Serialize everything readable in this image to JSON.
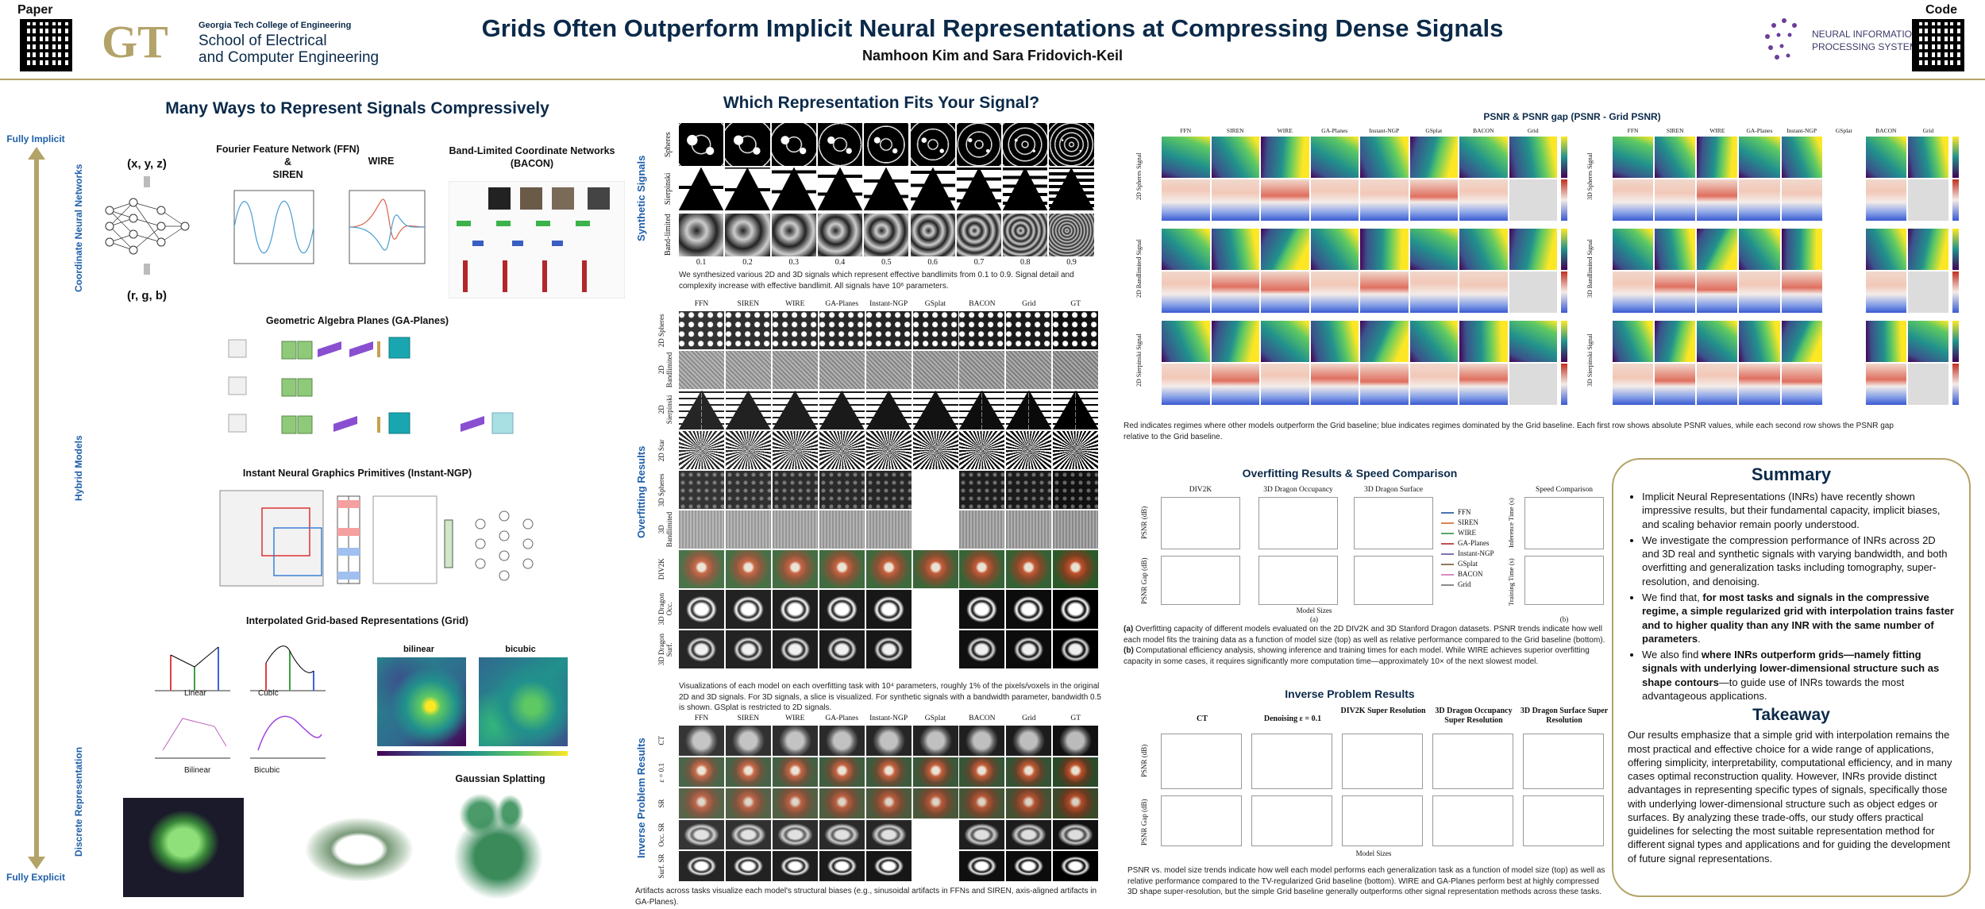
{
  "header": {
    "title": "Grids Often Outperform Implicit Neural Representations at Compressing Dense Signals",
    "authors": "Namhoon Kim and Sara Fridovich-Keil",
    "paper_label": "Paper",
    "code_label": "Code",
    "institution": [
      "Georgia Tech College of Engineering",
      "School of Electrical",
      "and Computer Engineering"
    ],
    "conference": [
      "NEURAL INFORMATION",
      "PROCESSING SYSTEMS"
    ]
  },
  "left": {
    "title": "Many Ways to Represent Signals Compressively",
    "top_label": "Fully Implicit",
    "bottom_label": "Fully Explicit",
    "groups": [
      "Coordinate Neural Networks",
      "Hybrid Models",
      "Discrete Representation"
    ],
    "input": "(x, y, z)",
    "output": "(r, g, b)",
    "ffn_title": [
      "Fourier Feature Network (FFN)",
      "&",
      "SIREN"
    ],
    "wire_title": "WIRE",
    "bacon_title": [
      "Band-Limited Coordinate Networks",
      "(BACON)"
    ],
    "gaplanes_title": "Geometric Algebra Planes (GA-Planes)",
    "ingp_title": "Instant Neural Graphics Primitives (Instant-NGP)",
    "grid_title": "Interpolated Grid-based Representations (Grid)",
    "interp_labels": [
      "Linear",
      "Cubic",
      "Bilinear",
      "Bicubic"
    ],
    "heatmap_titles": [
      "bilinear",
      "bicubic"
    ],
    "gs_title": "Gaussian Splatting"
  },
  "middle": {
    "title": "Which Representation Fits Your Signal?",
    "synthetic": {
      "label": "Synthetic Signals",
      "rows": [
        "Spheres",
        "Sierpinski",
        "Band-limited"
      ],
      "bandwidths": [
        "0.1",
        "0.2",
        "0.3",
        "0.4",
        "0.5",
        "0.6",
        "0.7",
        "0.8",
        "0.9"
      ],
      "caption": "We synthesized various 2D and 3D signals which represent effective bandlimits from 0.1 to 0.9. Signal detail and complexity increase with effective bandlimit. All signals have 10⁶ parameters."
    },
    "overfitting": {
      "label": "Overfitting Results",
      "columns": [
        "FFN",
        "SIREN",
        "WIRE",
        "GA-Planes",
        "Instant-NGP",
        "GSplat",
        "BACON",
        "Grid",
        "GT"
      ],
      "rows": [
        "2D Spheres",
        "2D Bandlimited",
        "2D Sierpinski",
        "2D Star",
        "3D Spheres",
        "3D Bandlimited",
        "DIV2K",
        "3D Dragon Occ.",
        "3D Dragon Surf."
      ],
      "caption": "Visualizations of each model on each overfitting task with 10⁴ parameters, roughly 1% of the pixels/voxels in the original 2D and 3D signals. For 3D signals, a slice is visualized. For synthetic signals with a bandwidth parameter, bandwidth 0.5 is shown. GSplat is restricted to 2D signals."
    },
    "inverse": {
      "label": "Inverse Problem Results",
      "columns": [
        "FFN",
        "SIREN",
        "WIRE",
        "GA-Planes",
        "Instant-NGP",
        "GSplat",
        "BACON",
        "Grid",
        "GT"
      ],
      "rows": [
        "CT",
        "ε = 0.1",
        "SR",
        "Occ. SR",
        "Surf. SR"
      ],
      "caption": "Artifacts across tasks visualize each model's structural biases (e.g., sinusoidal artifacts in FFNs and SIREN, axis-aligned artifacts in GA-Planes)."
    }
  },
  "right": {
    "psnr": {
      "title": "PSNR & PSNR gap (PSNR - Grid PSNR)",
      "columns": [
        "FFN",
        "SIREN",
        "WIRE",
        "GA-Planes",
        "Instant-NGP",
        "GSplat",
        "BACON",
        "Grid"
      ],
      "left_rows": [
        "2D Spheres Signal",
        "2D Bandlimited Signal",
        "2D Sierpinski Signal"
      ],
      "right_rows": [
        "3D Spheres Signal",
        "3D Bandlimited Signal",
        "3D Sierpinski Signal"
      ],
      "caption": "Red indicates regimes where other models outperform the Grid baseline; blue indicates regimes dominated by the Grid baseline. Each first row shows absolute PSNR values, while each second row shows the PSNR gap relative to the Grid baseline."
    },
    "overfit": {
      "title": "Overfitting Results & Speed Comparison",
      "panels": [
        "DIV2K",
        "3D Dragon Occupancy",
        "3D Dragon Surface",
        "Speed Comparison"
      ],
      "y_labels": [
        "PSNR (dB)",
        "PSNR Gap (dB)"
      ],
      "speed_y_labels": [
        "Inference Time (s)",
        "Training Time (s)"
      ],
      "x_label": "Model Sizes",
      "sublabels": [
        "(a)",
        "(b)"
      ],
      "legend": [
        {
          "name": "FFN",
          "color": "#4c72b0"
        },
        {
          "name": "SIREN",
          "color": "#dd8452"
        },
        {
          "name": "WIRE",
          "color": "#55a868"
        },
        {
          "name": "GA-Planes",
          "color": "#c44e52"
        },
        {
          "name": "Instant-NGP",
          "color": "#8172b3"
        },
        {
          "name": "GSplat",
          "color": "#937860"
        },
        {
          "name": "BACON",
          "color": "#da8bc3"
        },
        {
          "name": "Grid",
          "color": "#8c8c8c"
        }
      ],
      "caption": [
        "(a)",
        " Overfitting capacity of different models evaluated on the 2D DIV2K and 3D Stanford Dragon datasets. PSNR trends indicate how well each model fits the training data as a function of model size (top) as well as relative performance compared to the Grid baseline (bottom). ",
        "(b)",
        " Computational efficiency analysis, showing inference and training times for each model. While WIRE achieves superior overfitting capacity in some cases, it requires significantly more computation time—approximately 10× of the next slowest model."
      ]
    },
    "inverse": {
      "title": "Inverse Problem Results",
      "tasks": [
        "CT",
        "Denoising ε = 0.1",
        "DIV2K Super Resolution",
        "3D Dragon Occupancy Super Resolution",
        "3D Dragon Surface Super Resolution"
      ],
      "y_labels": [
        "PSNR (dB)",
        "PSNR Gap (dB)"
      ],
      "x_label": "Model Sizes",
      "caption": "PSNR vs. model size trends indicate how well each model performs each generalization task as a function of model size (top) as well as relative performance compared to the TV-regularized Grid baseline (bottom). WIRE and GA-Planes perform best at highly compressed 3D shape super-resolution, but the simple Grid baseline generally outperforms other signal representation methods across these tasks."
    },
    "summary": {
      "title": "Summary",
      "bullets": [
        [
          "Implicit Neural Representations (INRs) have recently shown impressive results, but their fundamental capacity, implicit biases, and scaling behavior remain poorly understood."
        ],
        [
          "We investigate the compression performance of INRs across 2D and 3D real and synthetic signals with varying bandwidth, and both overfitting and generalization tasks including tomography, super-resolution, and denoising."
        ],
        [
          "We find that, ",
          "for most tasks and signals in the compressive regime, a simple regularized grid with interpolation trains faster and to higher quality than any INR with the same number of parameters",
          "."
        ],
        [
          "We also find ",
          "where INRs outperform grids—namely fitting signals with underlying lower-dimensional structure such as shape contours",
          "—to guide use of INRs towards the most advantageous applications."
        ]
      ],
      "takeaway_title": "Takeaway",
      "takeaway": "Our results emphasize that a simple grid with interpolation remains the most practical and effective choice for a wide range of applications, offering simplicity, interpretability, computational efficiency, and in many cases optimal reconstruction quality. However, INRs provide distinct advantages in representing specific types of signals, specifically those with underlying lower-dimensional structure such as object edges or surfaces. By analyzing these trade-offs, our study offers practical guidelines for selecting the most suitable representation method for different signal types and applications and for guiding the development of future signal representations."
    }
  }
}
